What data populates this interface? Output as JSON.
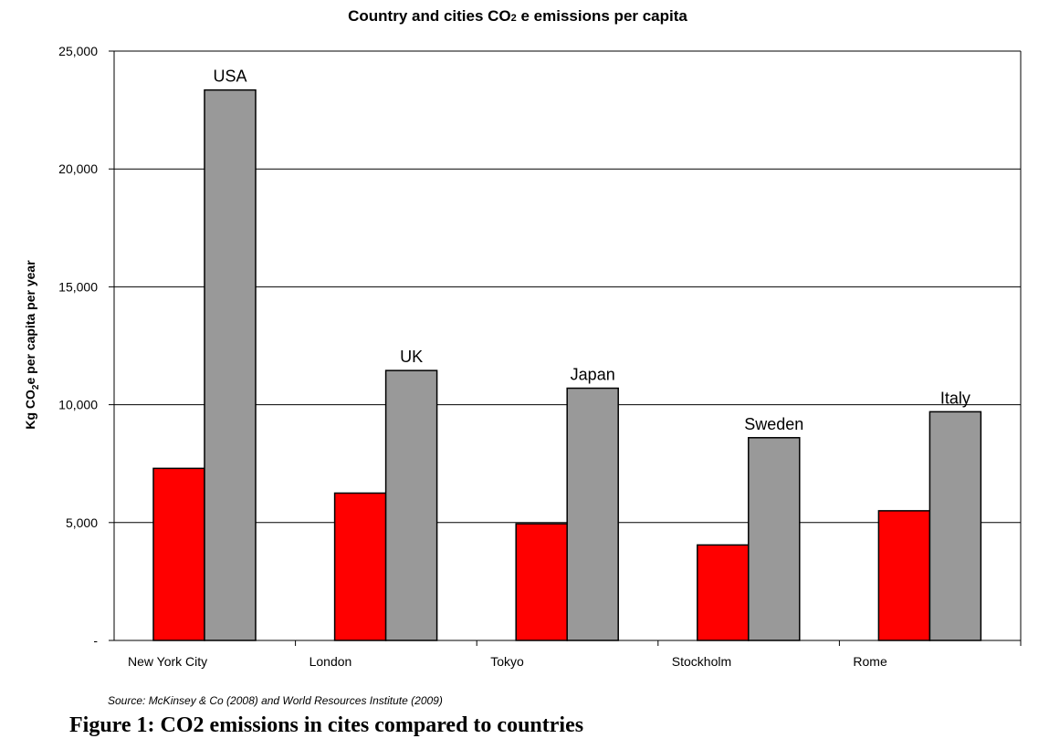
{
  "chart_data": {
    "type": "bar",
    "title": "Country and cities CO2 e emissions per capita",
    "ylabel": "Kg CO2e per capita per year",
    "xlabel": "",
    "categories": [
      "New York City",
      "London",
      "Tokyo",
      "Stockholm",
      "Rome"
    ],
    "series": [
      {
        "values": [
          7300,
          6250,
          4950,
          4050,
          5500
        ],
        "color": "#ff0000"
      },
      {
        "values": [
          23350,
          11450,
          10700,
          8600,
          9700
        ],
        "color": "#999999"
      }
    ],
    "bar_labels": [
      "USA",
      "UK",
      "Japan",
      "Sweden",
      "Italy"
    ],
    "ylim": [
      0,
      25000
    ],
    "yticks": [
      0,
      5000,
      10000,
      15000,
      20000,
      25000
    ],
    "ytick_labels": [
      "-",
      "5,000",
      "10,000",
      "15,000",
      "20,000",
      "25,000"
    ],
    "grid": true,
    "legend": "none"
  },
  "title_parts": {
    "before": "Country and cities CO",
    "sub": "2",
    "after": " e emissions per capita"
  },
  "ylabel_parts": {
    "before": "Kg CO",
    "sub": "2",
    "after": "e per capita per year"
  },
  "source_note": "Source: McKinsey & Co (2008) and World Resources Institute (2009)",
  "figure_caption": "Figure 1: CO2 emissions in cites compared to countries"
}
